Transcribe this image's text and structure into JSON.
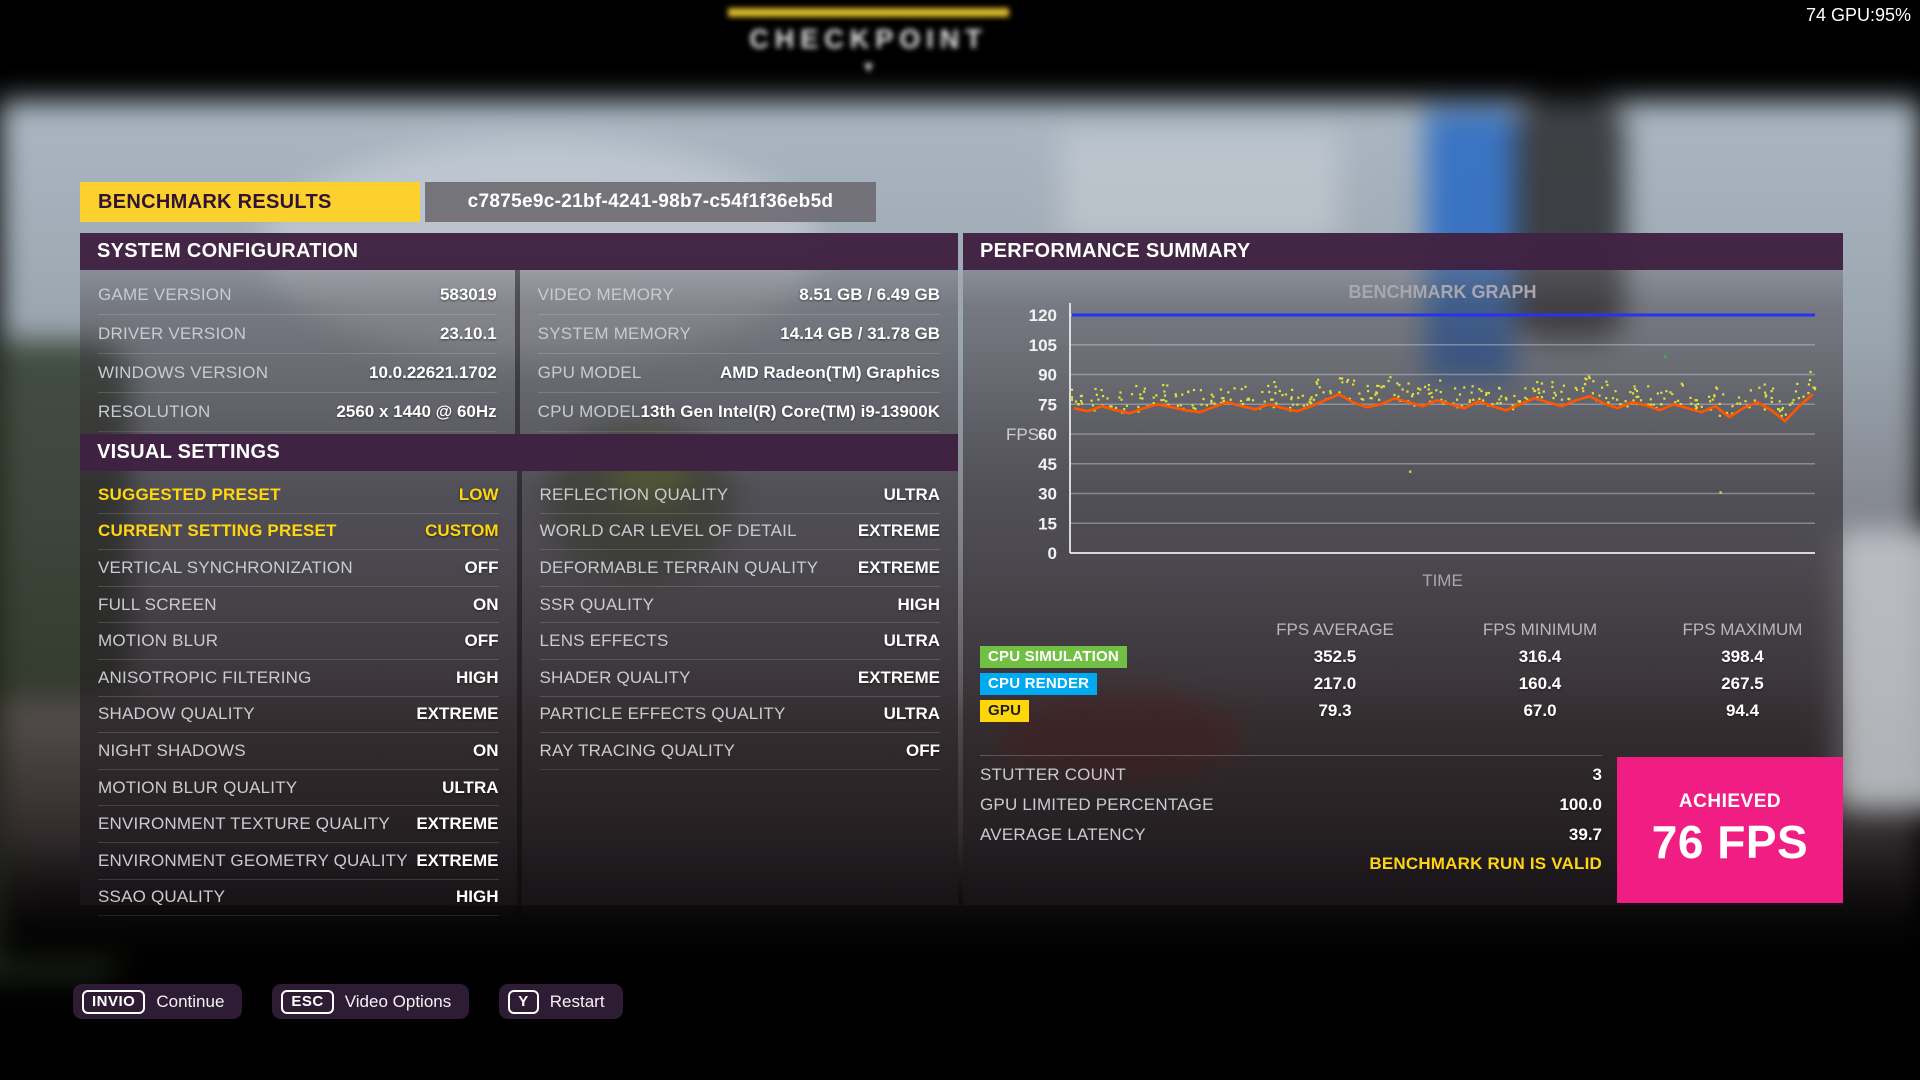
{
  "hud": {
    "fps_counter": "74 GPU:95%"
  },
  "background": {
    "billboard_text": "CHECKPOINT",
    "billboard_arrow": "▼"
  },
  "header": {
    "title": "BENCHMARK RESULTS",
    "run_id": "c7875e9c-21bf-4241-98b7-c54f1f36eb5d"
  },
  "system_configuration": {
    "title": "SYSTEM CONFIGURATION",
    "left": [
      {
        "label": "GAME VERSION",
        "value": "583019"
      },
      {
        "label": "DRIVER VERSION",
        "value": "23.10.1"
      },
      {
        "label": "WINDOWS VERSION",
        "value": "10.0.22621.1702"
      },
      {
        "label": "RESOLUTION",
        "value": "2560 x 1440 @ 60Hz"
      }
    ],
    "right": [
      {
        "label": "VIDEO MEMORY",
        "value": "8.51 GB / 6.49 GB"
      },
      {
        "label": "SYSTEM MEMORY",
        "value": "14.14 GB / 31.78 GB"
      },
      {
        "label": "GPU MODEL",
        "value": "AMD Radeon(TM) Graphics"
      },
      {
        "label": "CPU MODEL",
        "value": "13th Gen Intel(R) Core(TM) i9-13900K"
      }
    ]
  },
  "visual_settings": {
    "title": "VISUAL SETTINGS",
    "left": [
      {
        "label": "SUGGESTED PRESET",
        "value": "LOW",
        "highlight": true
      },
      {
        "label": "CURRENT SETTING PRESET",
        "value": "CUSTOM",
        "highlight": true
      },
      {
        "label": "VERTICAL SYNCHRONIZATION",
        "value": "OFF"
      },
      {
        "label": "FULL SCREEN",
        "value": "ON"
      },
      {
        "label": "MOTION BLUR",
        "value": "OFF"
      },
      {
        "label": "ANISOTROPIC FILTERING",
        "value": "HIGH"
      },
      {
        "label": "SHADOW QUALITY",
        "value": "EXTREME"
      },
      {
        "label": "NIGHT SHADOWS",
        "value": "ON"
      },
      {
        "label": "MOTION BLUR QUALITY",
        "value": "ULTRA"
      },
      {
        "label": "ENVIRONMENT TEXTURE QUALITY",
        "value": "EXTREME"
      },
      {
        "label": "ENVIRONMENT GEOMETRY QUALITY",
        "value": "EXTREME"
      },
      {
        "label": "SSAO QUALITY",
        "value": "HIGH"
      }
    ],
    "right": [
      {
        "label": "REFLECTION QUALITY",
        "value": "ULTRA"
      },
      {
        "label": "WORLD CAR LEVEL OF DETAIL",
        "value": "EXTREME"
      },
      {
        "label": "DEFORMABLE TERRAIN QUALITY",
        "value": "EXTREME"
      },
      {
        "label": "SSR QUALITY",
        "value": "HIGH"
      },
      {
        "label": "LENS EFFECTS",
        "value": "ULTRA"
      },
      {
        "label": "SHADER QUALITY",
        "value": "EXTREME"
      },
      {
        "label": "PARTICLE EFFECTS QUALITY",
        "value": "ULTRA"
      },
      {
        "label": "RAY TRACING QUALITY",
        "value": "OFF"
      }
    ]
  },
  "performance_summary": {
    "title": "PERFORMANCE SUMMARY",
    "table": {
      "headers": [
        "FPS AVERAGE",
        "FPS MINIMUM",
        "FPS MAXIMUM"
      ],
      "rows": [
        {
          "name": "CPU SIMULATION",
          "color": "#72c043",
          "text_color": "#ffffff",
          "average": "352.5",
          "minimum": "316.4",
          "maximum": "398.4"
        },
        {
          "name": "CPU RENDER",
          "color": "#00aaf0",
          "text_color": "#ffffff",
          "average": "217.0",
          "minimum": "160.4",
          "maximum": "267.5"
        },
        {
          "name": "GPU",
          "color": "#ffd60a",
          "text_color": "#1c1c1c",
          "average": "79.3",
          "minimum": "67.0",
          "maximum": "94.4"
        }
      ]
    },
    "stats": [
      {
        "label": "STUTTER COUNT",
        "value": "3"
      },
      {
        "label": "GPU LIMITED PERCENTAGE",
        "value": "100.0"
      },
      {
        "label": "AVERAGE LATENCY",
        "value": "39.7"
      }
    ],
    "valid_text": "BENCHMARK RUN IS VALID",
    "achieved": {
      "label": "ACHIEVED",
      "value": "76 FPS"
    }
  },
  "chart_data": {
    "type": "line",
    "title": "BENCHMARK GRAPH",
    "xlabel": "TIME",
    "ylabel": "FPS",
    "ylim": [
      0,
      120
    ],
    "yticks": [
      0,
      15,
      30,
      45,
      60,
      75,
      90,
      105,
      120
    ],
    "grid": true,
    "series": [
      {
        "name": "fps-cap",
        "type": "line",
        "color": "#2733f0",
        "constant": 120
      },
      {
        "name": "gpu-fps-smoothed",
        "type": "line",
        "color": "#ff5600",
        "values": [
          73,
          71.5,
          74,
          72,
          70.5,
          73,
          75,
          73.5,
          72,
          71,
          73.5,
          76,
          74,
          72.5,
          75,
          73,
          71.5,
          74,
          77,
          80,
          76,
          73.5,
          75,
          78,
          76,
          74,
          77,
          75,
          73,
          76.5,
          74,
          72,
          75,
          78,
          76,
          74,
          77,
          79,
          75.5,
          73,
          76,
          74.5,
          72,
          75,
          73,
          71,
          74,
          68.5,
          73,
          76,
          72,
          66.5,
          74,
          80
        ]
      },
      {
        "name": "gpu-fps-samples",
        "type": "scatter",
        "color": "#e0e03a",
        "note": "instantaneous samples scattered 0-11 FPS above smoothed line",
        "spread_above": 11,
        "points_per_step": 7
      }
    ],
    "outliers": [
      {
        "t": 0.455,
        "v": 41,
        "color": "#d8d832"
      },
      {
        "t": 0.875,
        "v": 30.5,
        "color": "#d8d832"
      },
      {
        "t": 0.8,
        "v": 99,
        "color": "#3db54a"
      }
    ]
  },
  "footer": {
    "buttons": [
      {
        "key": "INVIO",
        "label": "Continue"
      },
      {
        "key": "ESC",
        "label": "Video Options"
      },
      {
        "key": "Y",
        "label": "Restart"
      }
    ]
  },
  "colors": {
    "accent_yellow": "#fcd12d",
    "header_purple": "#3f2142",
    "achieved_pink": "#f01e82",
    "valid_yellow": "#ffd415",
    "setting_highlight": "#ffd60f"
  }
}
